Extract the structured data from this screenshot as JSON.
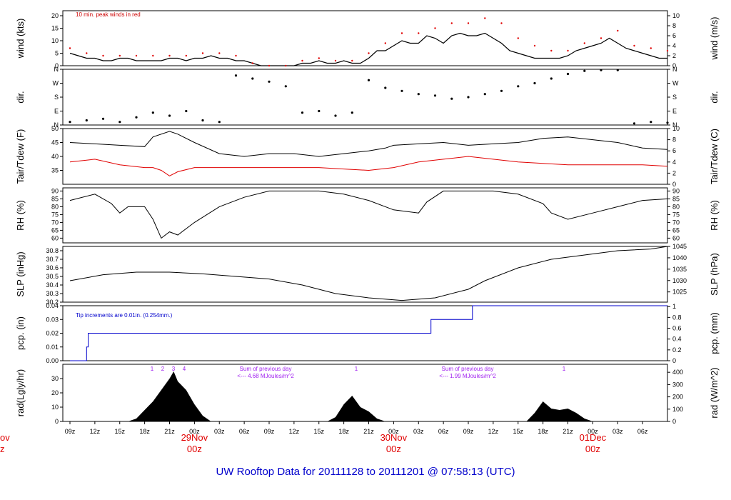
{
  "title": "UW Rooftop Data for 20111128  to  20111201 @ 07:58:13  (UTC)",
  "chart_data": [
    {
      "type": "line",
      "ylabel_left": "wind (kts)",
      "ylabel_right": "wind (m/s)",
      "ylim_left": [
        0,
        22
      ],
      "ylim_right": [
        0,
        11
      ],
      "yticks_left": [
        "0",
        "5",
        "10",
        "15",
        "20"
      ],
      "yticks_right": [
        "0",
        "2",
        "4",
        "6",
        "8",
        "10"
      ],
      "annotation": "10 min. peak winds in red",
      "series": [
        {
          "name": "wind",
          "color": "#000000",
          "x": [
            0,
            1,
            2,
            3,
            4,
            5,
            6,
            7,
            8,
            9,
            10,
            11,
            12,
            13,
            14,
            15,
            16,
            17,
            18,
            19,
            20,
            21,
            22,
            23,
            24,
            25,
            26,
            27,
            28,
            29,
            30,
            31,
            32,
            33,
            34,
            35,
            36,
            37,
            38,
            39,
            40,
            41,
            42,
            43,
            44,
            45,
            46,
            47,
            48,
            49,
            50,
            51,
            52,
            53,
            54,
            55,
            56,
            57,
            58,
            59,
            60,
            61,
            62,
            63,
            64,
            65,
            66,
            67,
            68,
            69,
            70,
            71,
            72
          ],
          "y": [
            5,
            4,
            3,
            3,
            2,
            2,
            3,
            3,
            2,
            2,
            2,
            2,
            3,
            3,
            2,
            3,
            3,
            4,
            3,
            3,
            2,
            2,
            1,
            0,
            0,
            0,
            0,
            0,
            1,
            1,
            2,
            1,
            1,
            2,
            1,
            1,
            3,
            6,
            6,
            8,
            10,
            9,
            9,
            12,
            11,
            9,
            12,
            13,
            12,
            12,
            13,
            11,
            9,
            6,
            5,
            4,
            3,
            3,
            3,
            3,
            4,
            6,
            7,
            8,
            9,
            11,
            9,
            7,
            6,
            5,
            4,
            3,
            3
          ]
        },
        {
          "name": "peak",
          "color": "#e00000",
          "x": [
            0,
            2,
            4,
            6,
            8,
            10,
            12,
            14,
            16,
            18,
            20,
            22,
            24,
            26,
            28,
            30,
            32,
            34,
            36,
            38,
            40,
            42,
            44,
            46,
            48,
            50,
            52,
            54,
            56,
            58,
            60,
            62,
            64,
            66,
            68,
            70,
            72
          ],
          "y": [
            7,
            5,
            4,
            4,
            4,
            4,
            4,
            4,
            5,
            5,
            4,
            1,
            0,
            0,
            2,
            3,
            2,
            2,
            5,
            9,
            13,
            13,
            15,
            17,
            17,
            19,
            17,
            11,
            8,
            6,
            6,
            9,
            11,
            14,
            8,
            7,
            6
          ]
        }
      ]
    },
    {
      "type": "scatter",
      "ylabel_left": "dir.",
      "ylabel_right": "dir.",
      "yticks": [
        "N",
        "E",
        "S",
        "W",
        "N"
      ],
      "x": [
        0,
        2,
        4,
        6,
        8,
        10,
        12,
        14,
        16,
        18,
        20,
        22,
        24,
        26,
        28,
        30,
        32,
        34,
        36,
        38,
        40,
        42,
        44,
        46,
        48,
        50,
        52,
        54,
        56,
        58,
        60,
        62,
        64,
        66,
        68,
        70,
        72
      ],
      "y": [
        20,
        30,
        40,
        20,
        50,
        80,
        60,
        90,
        30,
        20,
        320,
        300,
        280,
        250,
        80,
        90,
        60,
        80,
        290,
        240,
        220,
        200,
        190,
        170,
        180,
        200,
        220,
        250,
        270,
        300,
        330,
        350,
        355,
        355,
        10,
        20,
        15
      ]
    },
    {
      "type": "line",
      "ylabel_left": "Tair/Tdew (F)",
      "ylabel_right": "Tair/Tdew (C)",
      "ylim_left": [
        30,
        50
      ],
      "ylim_right": [
        0,
        10
      ],
      "yticks_left": [
        "35",
        "40",
        "45",
        "50"
      ],
      "yticks_right": [
        "0",
        "2",
        "4",
        "6",
        "8",
        "10"
      ],
      "series": [
        {
          "name": "Tair",
          "color": "#000000",
          "x": [
            0,
            3,
            6,
            9,
            10,
            12,
            13,
            15,
            18,
            21,
            24,
            27,
            30,
            33,
            36,
            38,
            39,
            42,
            45,
            48,
            51,
            54,
            57,
            60,
            63,
            66,
            69,
            72
          ],
          "y": [
            45,
            44.5,
            44,
            43.5,
            47,
            49,
            48,
            45,
            41,
            40,
            41,
            41,
            40,
            41,
            42,
            43,
            44,
            44.5,
            45,
            44,
            44.5,
            45,
            46.5,
            47,
            46,
            45,
            43,
            42.5
          ]
        },
        {
          "name": "Tdew",
          "color": "#e00000",
          "x": [
            0,
            3,
            6,
            9,
            10,
            11,
            12,
            13,
            15,
            18,
            21,
            24,
            27,
            30,
            33,
            36,
            39,
            42,
            45,
            48,
            51,
            54,
            57,
            60,
            63,
            66,
            69,
            72
          ],
          "y": [
            38,
            39,
            37,
            36,
            36,
            35,
            33,
            34.5,
            36,
            36,
            36,
            36,
            36,
            36,
            35.5,
            35,
            36,
            38,
            39,
            40,
            39,
            38,
            37.5,
            37,
            37,
            37,
            37,
            36.5
          ]
        }
      ]
    },
    {
      "type": "line",
      "ylabel_left": "RH (%)",
      "ylabel_right": "RH (%)",
      "ylim": [
        57,
        92
      ],
      "yticks": [
        "60",
        "65",
        "70",
        "75",
        "80",
        "85",
        "90"
      ],
      "series": [
        {
          "name": "RH",
          "color": "#000000",
          "x": [
            0,
            3,
            5,
            6,
            7,
            9,
            10,
            11,
            12,
            13,
            15,
            18,
            21,
            24,
            27,
            30,
            33,
            36,
            39,
            42,
            43,
            45,
            48,
            51,
            54,
            57,
            58,
            60,
            63,
            66,
            69,
            72
          ],
          "y": [
            84,
            88,
            82,
            76,
            80,
            80,
            72,
            60,
            64,
            62,
            70,
            80,
            86,
            90,
            90,
            90,
            88,
            84,
            78,
            76,
            83,
            90,
            90,
            90,
            88,
            82,
            76,
            72,
            76,
            80,
            84,
            85
          ]
        }
      ]
    },
    {
      "type": "line",
      "ylabel_left": "SLP (inHg)",
      "ylabel_right": "SLP (hPa)",
      "ylim_left": [
        30.2,
        30.85
      ],
      "ylim_right": [
        1020.5,
        1045
      ],
      "yticks_left": [
        "30.2",
        "30.3",
        "30.4",
        "30.5",
        "30.6",
        "30.7",
        "30.8"
      ],
      "yticks_right": [
        "1025",
        "1030",
        "1035",
        "1040",
        "1045"
      ],
      "series": [
        {
          "name": "SLP",
          "color": "#000000",
          "x": [
            0,
            4,
            8,
            12,
            16,
            20,
            24,
            28,
            32,
            36,
            40,
            44,
            48,
            50,
            54,
            58,
            62,
            66,
            70,
            72
          ],
          "y": [
            30.45,
            30.52,
            30.55,
            30.55,
            30.53,
            30.5,
            30.47,
            30.4,
            30.3,
            30.25,
            30.22,
            30.25,
            30.35,
            30.45,
            30.6,
            30.7,
            30.75,
            30.8,
            30.82,
            30.85
          ]
        }
      ]
    },
    {
      "type": "line",
      "ylabel_left": "pcp. (in)",
      "ylabel_right": "pcp. (mm)",
      "ylim_left": [
        0,
        0.04
      ],
      "ylim_right": [
        0,
        1.016
      ],
      "yticks_left": [
        "0.00",
        "0.01",
        "0.02",
        "0.03",
        "0.04"
      ],
      "yticks_right": [
        "0",
        "0.2",
        "0.4",
        "0.6",
        "0.8",
        "1"
      ],
      "annotation": "Tip increments are 0.01in. (0.254mm.)",
      "series": [
        {
          "name": "pcp",
          "color": "#0000cc",
          "x": [
            0,
            2,
            2,
            2.2,
            2.2,
            43.5,
            43.5,
            48.5,
            48.5,
            72
          ],
          "y": [
            0,
            0,
            0.01,
            0.01,
            0.02,
            0.02,
            0.03,
            0.03,
            0.04,
            0.04
          ]
        }
      ]
    },
    {
      "type": "area",
      "ylabel_left": "rad(Lgly/hr)",
      "ylabel_right": "rad (W/m^2)",
      "ylim_left": [
        0,
        40
      ],
      "ylim_right": [
        0,
        465
      ],
      "yticks_left": [
        "0",
        "10",
        "20",
        "30"
      ],
      "yticks_right": [
        "0",
        "100",
        "200",
        "300",
        "400"
      ],
      "annotations_top": [
        "1",
        "2",
        "3",
        "4",
        "Sum of previous day",
        "<--- 4.68 MJoules/m^2",
        "1",
        "Sum of previous day",
        "<--- 1.99 MJoules/m^2",
        "1"
      ],
      "series": [
        {
          "name": "rad",
          "color": "#000000",
          "x": [
            7,
            8,
            9,
            10,
            11,
            12,
            12.5,
            13,
            14,
            15,
            16,
            17,
            31,
            32,
            33,
            34,
            35,
            36,
            37,
            38,
            55,
            56,
            57,
            58,
            59,
            60,
            61,
            62,
            63
          ],
          "y": [
            0,
            2,
            8,
            14,
            22,
            30,
            35,
            28,
            22,
            12,
            4,
            0,
            0,
            3,
            12,
            18,
            10,
            7,
            2,
            0,
            0,
            6,
            14,
            9,
            8,
            9,
            6,
            2,
            0
          ]
        }
      ]
    }
  ],
  "x_axis": {
    "hour_ticks": [
      "09z",
      "12z",
      "15z",
      "18z",
      "21z",
      "00z",
      "03z",
      "06z",
      "09z",
      "12z",
      "15z",
      "18z",
      "21z",
      "00z",
      "03z",
      "06z",
      "09z",
      "12z",
      "15z",
      "18z",
      "21z",
      "00z",
      "03z",
      "06z"
    ],
    "date_labels": [
      {
        "day": "29Nov",
        "hour": "00z"
      },
      {
        "day": "30Nov",
        "hour": "00z"
      },
      {
        "day": "01Dec",
        "hour": "00z"
      }
    ],
    "cut_left_day": "ov",
    "cut_left_hour": "z"
  }
}
